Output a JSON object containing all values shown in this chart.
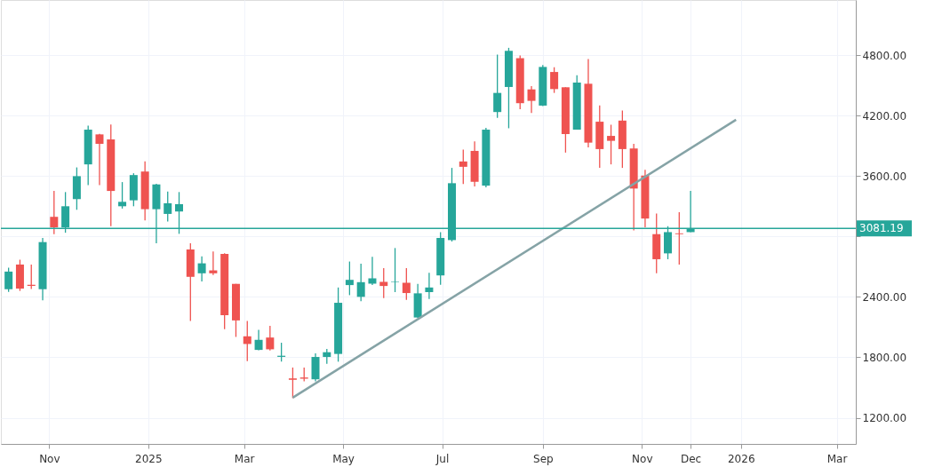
{
  "chart_data": {
    "type": "candlestick",
    "x": [
      "2024-10-07",
      "2024-10-14",
      "2024-10-21",
      "2024-10-28",
      "2024-11-04",
      "2024-11-11",
      "2024-11-18",
      "2024-11-25",
      "2024-12-02",
      "2024-12-09",
      "2024-12-16",
      "2024-12-23",
      "2024-12-30",
      "2025-01-06",
      "2025-01-13",
      "2025-01-20",
      "2025-01-27",
      "2025-02-03",
      "2025-02-10",
      "2025-02-17",
      "2025-02-24",
      "2025-03-03",
      "2025-03-10",
      "2025-03-17",
      "2025-03-24",
      "2025-03-31",
      "2025-04-07",
      "2025-04-14",
      "2025-04-21",
      "2025-04-28",
      "2025-05-05",
      "2025-05-12",
      "2025-05-19",
      "2025-05-26",
      "2025-06-02",
      "2025-06-09",
      "2025-06-16",
      "2025-06-23",
      "2025-06-30",
      "2025-07-07",
      "2025-07-14",
      "2025-07-21",
      "2025-07-28",
      "2025-08-04",
      "2025-08-11",
      "2025-08-18",
      "2025-08-25",
      "2025-09-01",
      "2025-09-08",
      "2025-09-15",
      "2025-09-22",
      "2025-09-29",
      "2025-10-06",
      "2025-10-13",
      "2025-10-20",
      "2025-10-27",
      "2025-11-03",
      "2025-11-10",
      "2025-11-17",
      "2025-11-24",
      "2025-12-01"
    ],
    "ohlc": [
      [
        2477,
        2690,
        2450,
        2652
      ],
      [
        2722,
        2770,
        2460,
        2483
      ],
      [
        2521,
        2722,
        2478,
        2510
      ],
      [
        2477,
        2986,
        2366,
        2945
      ],
      [
        3196,
        3454,
        3024,
        3091
      ],
      [
        3091,
        3442,
        3038,
        3301
      ],
      [
        3372,
        3687,
        3266,
        3600
      ],
      [
        3717,
        4103,
        3512,
        4062
      ],
      [
        4015,
        4020,
        3512,
        3921
      ],
      [
        3965,
        4114,
        3103,
        3453
      ],
      [
        3301,
        3541,
        3278,
        3345
      ],
      [
        3360,
        3629,
        3301,
        3611
      ],
      [
        3646,
        3746,
        3161,
        3272
      ],
      [
        3272,
        3524,
        2933,
        3518
      ],
      [
        3225,
        3448,
        3149,
        3331
      ],
      [
        3249,
        3442,
        3027,
        3322
      ],
      [
        2872,
        2933,
        2161,
        2600
      ],
      [
        2635,
        2804,
        2553,
        2734
      ],
      [
        2664,
        2851,
        2617,
        2635
      ],
      [
        2828,
        2834,
        2079,
        2220
      ],
      [
        2530,
        2530,
        2003,
        2167
      ],
      [
        2009,
        2161,
        1763,
        1933
      ],
      [
        1874,
        2073,
        1870,
        1974
      ],
      [
        1997,
        2114,
        1868,
        1880
      ],
      [
        1805,
        1945,
        1758,
        1816
      ],
      [
        1591,
        1699,
        1395,
        1577
      ],
      [
        1600,
        1699,
        1562,
        1588
      ],
      [
        1582,
        1839,
        1562,
        1804
      ],
      [
        1804,
        1883,
        1737,
        1851
      ],
      [
        1834,
        2494,
        1757,
        2342
      ],
      [
        2518,
        2752,
        2418,
        2570
      ],
      [
        2401,
        2731,
        2357,
        2547
      ],
      [
        2532,
        2798,
        2518,
        2585
      ],
      [
        2550,
        2687,
        2389,
        2509
      ],
      [
        2545,
        2886,
        2448,
        2550
      ],
      [
        2541,
        2687,
        2372,
        2439
      ],
      [
        2196,
        2529,
        2190,
        2436
      ],
      [
        2448,
        2641,
        2380,
        2494
      ],
      [
        2614,
        3044,
        2521,
        2986
      ],
      [
        2965,
        3682,
        2951,
        3530
      ],
      [
        3746,
        3863,
        3521,
        3693
      ],
      [
        3851,
        3945,
        3497,
        3544
      ],
      [
        3506,
        4079,
        3489,
        4062
      ],
      [
        4237,
        4807,
        4179,
        4427
      ],
      [
        4486,
        4875,
        4076,
        4845
      ],
      [
        4772,
        4799,
        4266,
        4325
      ],
      [
        4462,
        4494,
        4228,
        4348
      ],
      [
        4301,
        4705,
        4296,
        4685
      ],
      [
        4635,
        4682,
        4427,
        4465
      ],
      [
        4483,
        4483,
        3834,
        4018
      ],
      [
        4062,
        4603,
        4062,
        4530
      ],
      [
        4518,
        4763,
        3886,
        3933
      ],
      [
        4141,
        4302,
        3682,
        3869
      ],
      [
        4000,
        4111,
        3717,
        3951
      ],
      [
        4152,
        4252,
        3682,
        3869
      ],
      [
        3875,
        3921,
        3062,
        3477
      ],
      [
        3606,
        3664,
        3091,
        3179
      ],
      [
        3024,
        3228,
        2635,
        2775
      ],
      [
        2833,
        3103,
        2775,
        3044
      ],
      [
        3032,
        3243,
        2722,
        3024
      ],
      [
        3044,
        3454,
        3044,
        3081
      ]
    ],
    "colors": [
      "#26a69a",
      "#ef5350",
      "#ef5350",
      "#26a69a",
      "#ef5350",
      "#26a69a",
      "#26a69a",
      "#26a69a",
      "#ef5350",
      "#ef5350",
      "#26a69a",
      "#26a69a",
      "#ef5350",
      "#26a69a",
      "#26a69a",
      "#26a69a",
      "#ef5350",
      "#26a69a",
      "#ef5350",
      "#ef5350",
      "#ef5350",
      "#ef5350",
      "#26a69a",
      "#ef5350",
      "#26a69a",
      "#ef5350",
      "#ef5350",
      "#26a69a",
      "#26a69a",
      "#26a69a",
      "#26a69a",
      "#26a69a",
      "#26a69a",
      "#ef5350",
      "#26a69a",
      "#ef5350",
      "#26a69a",
      "#26a69a",
      "#26a69a",
      "#26a69a",
      "#ef5350",
      "#ef5350",
      "#26a69a",
      "#26a69a",
      "#26a69a",
      "#ef5350",
      "#ef5350",
      "#26a69a",
      "#ef5350",
      "#ef5350",
      "#26a69a",
      "#ef5350",
      "#ef5350",
      "#ef5350",
      "#ef5350",
      "#ef5350",
      "#ef5350",
      "#ef5350",
      "#26a69a",
      "#ef5350",
      "#26a69a"
    ],
    "series": [
      {
        "type": "line",
        "x": [
          "2025-03-31",
          "2025-12-29"
        ],
        "values": [
          1400,
          4160
        ],
        "color": "#85a3a6"
      }
    ],
    "ref_lines": [
      {
        "axis": "y",
        "value": 3081.19,
        "label": "3081.19",
        "color": "#26a69a"
      }
    ],
    "xlim": [
      "2024-10-05",
      "2026-03-10"
    ],
    "xticks": [
      {
        "value": "2024-11-01",
        "label": "Nov"
      },
      {
        "value": "2025-01-01",
        "label": "2025"
      },
      {
        "value": "2025-03-01",
        "label": "Mar"
      },
      {
        "value": "2025-05-01",
        "label": "May"
      },
      {
        "value": "2025-07-01",
        "label": "Jul"
      },
      {
        "value": "2025-09-01",
        "label": "Sep"
      },
      {
        "value": "2025-11-01",
        "label": "Nov"
      },
      {
        "value": "2025-12-01",
        "label": "Dec"
      },
      {
        "value": "2026-01-01",
        "label": "2026"
      },
      {
        "value": "2026-03-01",
        "label": "Mar"
      }
    ],
    "ylim": [
      940,
      5350
    ],
    "yticks": [
      {
        "value": 1200,
        "label": "1200.00"
      },
      {
        "value": 1800,
        "label": "1800.00"
      },
      {
        "value": 2400,
        "label": "2400.00"
      },
      {
        "value": 3000,
        "label": null
      },
      {
        "value": 3600,
        "label": "3600.00"
      },
      {
        "value": 4200,
        "label": "4200.00"
      },
      {
        "value": 4800,
        "label": "4800.00"
      }
    ],
    "grid": true
  }
}
